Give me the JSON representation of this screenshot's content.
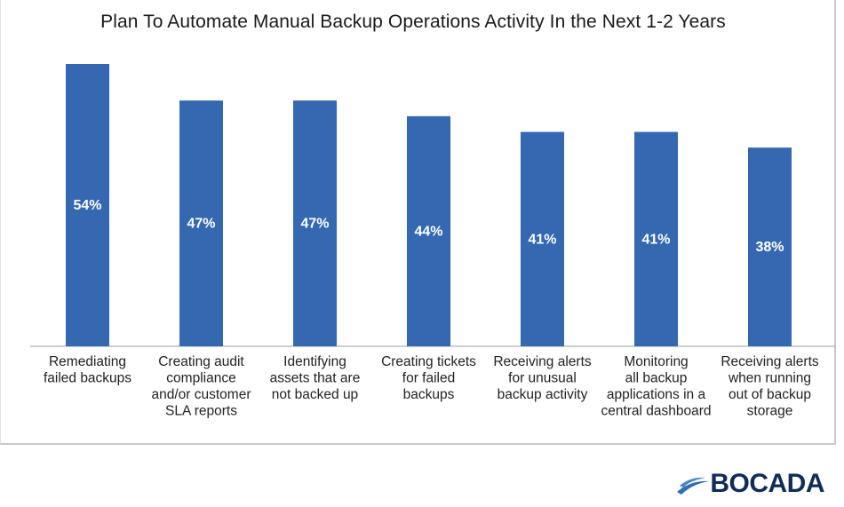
{
  "chart_data": {
    "type": "bar",
    "title": "Plan To Automate Manual Backup Operations Activity In the Next 1-2 Years",
    "xlabel": "",
    "ylabel": "",
    "ylim": [
      0,
      60
    ],
    "categories": [
      [
        "Remediating",
        "failed backups"
      ],
      [
        "Creating audit",
        "compliance",
        "and/or customer",
        "SLA reports"
      ],
      [
        "Identifying",
        "assets that are",
        "not backed up"
      ],
      [
        "Creating tickets",
        "for failed",
        "backups"
      ],
      [
        "Receiving alerts",
        "for unusual",
        "backup activity"
      ],
      [
        "Monitoring",
        "all backup",
        "applications in a",
        "central dashboard"
      ],
      [
        "Receiving alerts",
        "when running",
        "out of backup",
        "storage"
      ]
    ],
    "values": [
      54,
      47,
      47,
      44,
      41,
      41,
      38
    ],
    "labels": [
      "54%",
      "47%",
      "47%",
      "44%",
      "41%",
      "41%",
      "38%"
    ],
    "bar_color": "#3468b0"
  },
  "brand": {
    "name": "BOCADA",
    "color": "#0f2d57"
  }
}
